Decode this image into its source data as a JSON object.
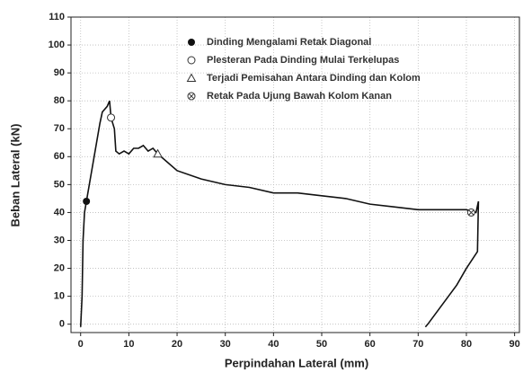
{
  "chart_data": {
    "type": "line",
    "x_label": "Perpindahan Lateral (mm)",
    "y_label": "Beban Lateral (kN)",
    "x": [
      0,
      0.3,
      0.5,
      0.8,
      1.2,
      2,
      3,
      4,
      4.5,
      5.5,
      6,
      6.3,
      7,
      7.3,
      8,
      9,
      10,
      11,
      12,
      13,
      14,
      15,
      16,
      18,
      20,
      25,
      30,
      35,
      40,
      45,
      50,
      55,
      60,
      65,
      70,
      75,
      80,
      82,
      82.5,
      82.3,
      80,
      78,
      75,
      72,
      71.5
    ],
    "series": [
      {
        "color": "#111111",
        "values": [
          -1,
          10,
          30,
          40,
          44,
          52,
          62,
          72,
          76,
          78,
          80,
          74,
          70,
          62,
          61,
          62,
          61,
          63,
          63,
          64,
          62,
          63,
          61,
          58,
          55,
          52,
          50,
          49,
          47,
          47,
          46,
          45,
          43,
          42,
          41,
          41,
          41,
          40,
          44,
          26,
          20,
          14,
          7,
          0,
          -1
        ]
      }
    ],
    "annotations": [
      {
        "label": "Dinding Mengalami Retak Diagonal",
        "marker": "filled-circle",
        "x": 1.2,
        "y": 44
      },
      {
        "label": "Plesteran Pada Dinding Mulai Terkelupas",
        "marker": "open-circle",
        "x": 6.3,
        "y": 74
      },
      {
        "label": "Terjadi Pemisahan Antara Dinding dan Kolom",
        "marker": "triangle",
        "x": 16,
        "y": 61
      },
      {
        "label": "Retak Pada Ujung Bawah Kolom Kanan",
        "marker": "circle-x",
        "x": 81,
        "y": 40
      }
    ],
    "xlim": [
      -2,
      91
    ],
    "ylim": [
      -3,
      110
    ],
    "xticks": [
      0,
      10,
      20,
      30,
      40,
      50,
      60,
      70,
      80,
      90
    ],
    "yticks": [
      0,
      10,
      20,
      30,
      40,
      50,
      60,
      70,
      80,
      90,
      100,
      110
    ],
    "grid": true
  }
}
